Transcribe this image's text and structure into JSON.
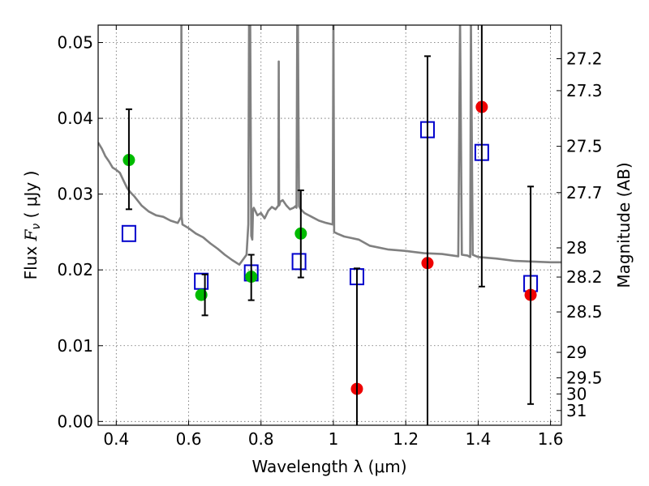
{
  "chart_data": {
    "type": "scatter",
    "xlabel": "Wavelength  λ (μm)",
    "ylabel": "Flux  F_ν  ( μJy )",
    "ylabel_parts": {
      "prefix": "Flux  ",
      "symbol": "F",
      "sub": "ν",
      "suffix": "  ( μJy )"
    },
    "right_label": "Magnitude (AB)",
    "xlim": [
      0.35,
      1.63
    ],
    "ylim": [
      -0.0005,
      0.0523
    ],
    "grid": true,
    "x_ticks": [
      "0.4",
      "0.6",
      "0.8",
      "1",
      "1.2",
      "1.4",
      "1.6"
    ],
    "x_tick_values": [
      0.4,
      0.6,
      0.8,
      1.0,
      1.2,
      1.4,
      1.6
    ],
    "y_ticks": [
      "0.00",
      "0.01",
      "0.02",
      "0.03",
      "0.04",
      "0.05"
    ],
    "y_tick_values": [
      0.0,
      0.01,
      0.02,
      0.03,
      0.04,
      0.05
    ],
    "mag_ticks": [
      "27.2",
      "27.3",
      "27.5",
      "27.7",
      "28",
      "28.2",
      "28.5",
      "29",
      "29.5",
      "30",
      "31"
    ],
    "mag_tick_values": [
      27.2,
      27.3,
      27.5,
      27.7,
      28,
      28.2,
      28.5,
      29,
      29.5,
      30,
      31
    ],
    "series": [
      {
        "color": "#808080",
        "kind": "line",
        "x": [
          0.35,
          0.36,
          0.37,
          0.38,
          0.39,
          0.4,
          0.41,
          0.42,
          0.43,
          0.44,
          0.45,
          0.47,
          0.49,
          0.51,
          0.53,
          0.55,
          0.57,
          0.579,
          0.58,
          0.581,
          0.583,
          0.6,
          0.62,
          0.64,
          0.66,
          0.68,
          0.7,
          0.72,
          0.74,
          0.76,
          0.765,
          0.767,
          0.77,
          0.773,
          0.776,
          0.778,
          0.78,
          0.79,
          0.8,
          0.81,
          0.82,
          0.83,
          0.84,
          0.848,
          0.849,
          0.85,
          0.851,
          0.853,
          0.86,
          0.87,
          0.88,
          0.89,
          0.895,
          0.898,
          0.9,
          0.902,
          0.905,
          0.91,
          0.92,
          0.94,
          0.96,
          0.98,
          0.998,
          1.0,
          1.002,
          1.01,
          1.03,
          1.05,
          1.07,
          1.1,
          1.15,
          1.2,
          1.25,
          1.3,
          1.345,
          1.35,
          1.355,
          1.37,
          1.378,
          1.38,
          1.385,
          1.4,
          1.45,
          1.5,
          1.55,
          1.6,
          1.63
        ],
        "y": [
          0.0368,
          0.036,
          0.035,
          0.0343,
          0.0335,
          0.0332,
          0.0328,
          0.0318,
          0.0308,
          0.0302,
          0.0297,
          0.0285,
          0.0277,
          0.0272,
          0.027,
          0.0265,
          0.0262,
          0.027,
          0.053,
          0.027,
          0.026,
          0.0255,
          0.0248,
          0.0243,
          0.0235,
          0.0228,
          0.022,
          0.0213,
          0.0207,
          0.022,
          0.026,
          0.053,
          0.053,
          0.0245,
          0.024,
          0.028,
          0.0282,
          0.0272,
          0.0275,
          0.0268,
          0.0278,
          0.0283,
          0.028,
          0.0285,
          0.0475,
          0.0285,
          0.0286,
          0.029,
          0.0292,
          0.0285,
          0.028,
          0.0282,
          0.0284,
          0.0282,
          0.053,
          0.053,
          0.0284,
          0.028,
          0.0275,
          0.027,
          0.0265,
          0.0262,
          0.026,
          0.053,
          0.025,
          0.0248,
          0.0244,
          0.0242,
          0.024,
          0.0232,
          0.0227,
          0.0225,
          0.0222,
          0.0221,
          0.0218,
          0.053,
          0.022,
          0.0219,
          0.0217,
          0.053,
          0.022,
          0.0217,
          0.0215,
          0.0212,
          0.0211,
          0.021,
          0.021
        ]
      },
      {
        "color": "#0000cc",
        "kind": "square",
        "x": [
          0.435,
          0.635,
          0.773,
          0.905,
          1.065,
          1.26,
          1.41,
          1.545
        ],
        "y": [
          0.0248,
          0.0185,
          0.0196,
          0.0211,
          0.0191,
          0.0385,
          0.0355,
          0.0182
        ]
      },
      {
        "color": "#00bb00",
        "kind": "circle",
        "x": [
          0.435,
          0.635,
          0.773,
          0.91
        ],
        "y": [
          0.0345,
          0.0167,
          0.0191,
          0.0248
        ]
      },
      {
        "color": "#ee0000",
        "kind": "circle",
        "x": [
          1.065,
          1.26,
          1.41,
          1.545
        ],
        "y": [
          0.0043,
          0.0209,
          0.0415,
          0.0167
        ]
      },
      {
        "color": "#000000",
        "kind": "errorbar",
        "x": [
          0.435,
          0.645,
          0.773,
          0.91,
          1.065,
          1.26,
          1.41,
          1.545
        ],
        "y_low": [
          0.028,
          0.014,
          0.016,
          0.019,
          -0.001,
          -0.001,
          0.0178,
          0.0023
        ],
        "y_high": [
          0.0412,
          0.0194,
          0.022,
          0.0305,
          0.0202,
          0.0482,
          0.053,
          0.031
        ]
      }
    ]
  }
}
